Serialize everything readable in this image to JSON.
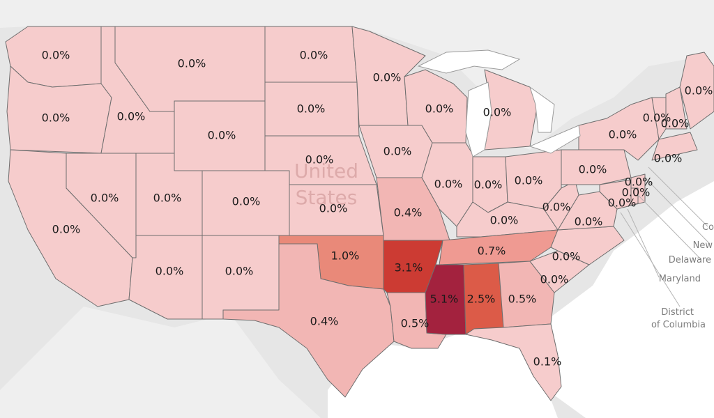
{
  "country_label": [
    "United",
    "States"
  ],
  "colors": {
    "background": "#e6e6e6",
    "water": "#ffffff",
    "other_land": "#efefef",
    "scale": [
      {
        "min": 0.0,
        "color": "#f6cccc"
      },
      {
        "min": 0.3,
        "color": "#f2b6b4"
      },
      {
        "min": 0.6,
        "color": "#ef9a92"
      },
      {
        "min": 0.9,
        "color": "#e98979"
      },
      {
        "min": 2.0,
        "color": "#dc5b48"
      },
      {
        "min": 2.8,
        "color": "#cc3b33"
      },
      {
        "min": 4.0,
        "color": "#a3223e"
      }
    ]
  },
  "reference_labels": [
    "Co",
    "New",
    "Delaware",
    "Maryland",
    "District",
    "of Columbia"
  ],
  "states": [
    {
      "name": "Washington",
      "value": 0.0,
      "label": "0.0%"
    },
    {
      "name": "Oregon",
      "value": 0.0,
      "label": "0.0%"
    },
    {
      "name": "California",
      "value": 0.0,
      "label": "0.0%"
    },
    {
      "name": "Nevada",
      "value": 0.0,
      "label": "0.0%"
    },
    {
      "name": "Idaho",
      "value": 0.0,
      "label": "0.0%"
    },
    {
      "name": "Montana",
      "value": 0.0,
      "label": "0.0%"
    },
    {
      "name": "Wyoming",
      "value": 0.0,
      "label": "0.0%"
    },
    {
      "name": "Utah",
      "value": 0.0,
      "label": "0.0%"
    },
    {
      "name": "Colorado",
      "value": 0.0,
      "label": "0.0%"
    },
    {
      "name": "Arizona",
      "value": 0.0,
      "label": "0.0%"
    },
    {
      "name": "New Mexico",
      "value": 0.0,
      "label": "0.0%"
    },
    {
      "name": "North Dakota",
      "value": 0.0,
      "label": "0.0%"
    },
    {
      "name": "South Dakota",
      "value": 0.0,
      "label": "0.0%"
    },
    {
      "name": "Nebraska",
      "value": 0.0,
      "label": "0.0%"
    },
    {
      "name": "Kansas",
      "value": 0.0,
      "label": "0.0%"
    },
    {
      "name": "Oklahoma",
      "value": 1.0,
      "label": "1.0%"
    },
    {
      "name": "Texas",
      "value": 0.4,
      "label": "0.4%"
    },
    {
      "name": "Minnesota",
      "value": 0.0,
      "label": "0.0%"
    },
    {
      "name": "Iowa",
      "value": 0.0,
      "label": "0.0%"
    },
    {
      "name": "Missouri",
      "value": 0.4,
      "label": "0.4%"
    },
    {
      "name": "Arkansas",
      "value": 3.1,
      "label": "3.1%"
    },
    {
      "name": "Louisiana",
      "value": 0.5,
      "label": "0.5%"
    },
    {
      "name": "Wisconsin",
      "value": 0.0,
      "label": "0.0%"
    },
    {
      "name": "Illinois",
      "value": 0.0,
      "label": "0.0%"
    },
    {
      "name": "Michigan",
      "value": 0.0,
      "label": "0.0%"
    },
    {
      "name": "Indiana",
      "value": 0.0,
      "label": "0.0%"
    },
    {
      "name": "Ohio",
      "value": 0.0,
      "label": "0.0%"
    },
    {
      "name": "Kentucky",
      "value": 0.0,
      "label": "0.0%"
    },
    {
      "name": "Tennessee",
      "value": 0.7,
      "label": "0.7%"
    },
    {
      "name": "Mississippi",
      "value": 5.1,
      "label": "5.1%"
    },
    {
      "name": "Alabama",
      "value": 2.5,
      "label": "2.5%"
    },
    {
      "name": "Georgia",
      "value": 0.5,
      "label": "0.5%"
    },
    {
      "name": "Florida",
      "value": 0.1,
      "label": "0.1%"
    },
    {
      "name": "South Carolina",
      "value": 0.0,
      "label": "0.0%"
    },
    {
      "name": "North Carolina",
      "value": 0.0,
      "label": "0.0%"
    },
    {
      "name": "Virginia",
      "value": 0.0,
      "label": "0.0%"
    },
    {
      "name": "West Virginia",
      "value": 0.0,
      "label": "0.0%"
    },
    {
      "name": "Pennsylvania",
      "value": 0.0,
      "label": "0.0%"
    },
    {
      "name": "New York",
      "value": 0.0,
      "label": "0.0%"
    },
    {
      "name": "Vermont",
      "value": 0.0,
      "label": "0.0%"
    },
    {
      "name": "New Hampshire",
      "value": 0.0,
      "label": "0.0%"
    },
    {
      "name": "Maine",
      "value": 0.0,
      "label": "0.0%"
    },
    {
      "name": "Massachusetts",
      "value": 0.0,
      "label": "0.0%"
    },
    {
      "name": "New Jersey",
      "value": 0.0,
      "label": "0.0%"
    },
    {
      "name": "Maryland",
      "value": 0.0,
      "label": "0.0%"
    },
    {
      "name": "Delaware",
      "value": 0.0,
      "label": "0.0%"
    }
  ]
}
